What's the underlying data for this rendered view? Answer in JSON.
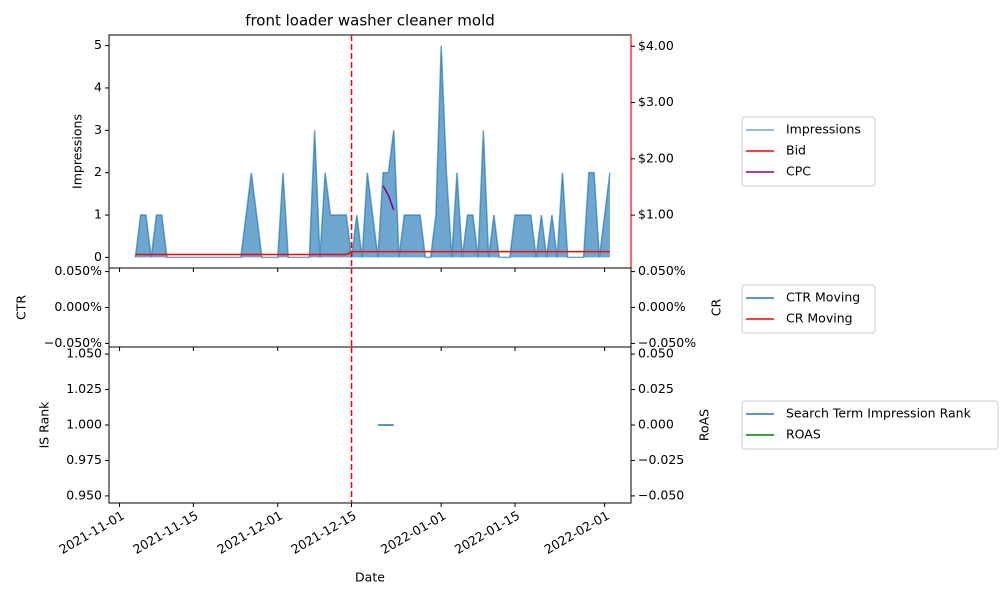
{
  "chart_data": [
    {
      "type": "line",
      "title": "front loader washer cleaner mold",
      "x": [
        "2021-11-04",
        "2021-11-05",
        "2021-11-06",
        "2021-11-07",
        "2021-11-08",
        "2021-11-09",
        "2021-11-10",
        "2021-11-11",
        "2021-11-12",
        "2021-11-13",
        "2021-11-14",
        "2021-11-15",
        "2021-11-16",
        "2021-11-17",
        "2021-11-18",
        "2021-11-19",
        "2021-11-20",
        "2021-11-21",
        "2021-11-22",
        "2021-11-23",
        "2021-11-24",
        "2021-11-25",
        "2021-11-26",
        "2021-11-27",
        "2021-11-28",
        "2021-11-29",
        "2021-11-30",
        "2021-12-01",
        "2021-12-02",
        "2021-12-03",
        "2021-12-04",
        "2021-12-05",
        "2021-12-06",
        "2021-12-07",
        "2021-12-08",
        "2021-12-09",
        "2021-12-10",
        "2021-12-11",
        "2021-12-12",
        "2021-12-13",
        "2021-12-14",
        "2021-12-15",
        "2021-12-16",
        "2021-12-17",
        "2021-12-18",
        "2021-12-19",
        "2021-12-20",
        "2021-12-21",
        "2021-12-22",
        "2021-12-23",
        "2021-12-24",
        "2021-12-25",
        "2021-12-26",
        "2021-12-27",
        "2021-12-28",
        "2021-12-29",
        "2021-12-30",
        "2021-12-31",
        "2022-01-01",
        "2022-01-02",
        "2022-01-03",
        "2022-01-04",
        "2022-01-05",
        "2022-01-06",
        "2022-01-07",
        "2022-01-08",
        "2022-01-09",
        "2022-01-10",
        "2022-01-11",
        "2022-01-12",
        "2022-01-13",
        "2022-01-14",
        "2022-01-15",
        "2022-01-16",
        "2022-01-17",
        "2022-01-18",
        "2022-01-19",
        "2022-01-20",
        "2022-01-21",
        "2022-01-22",
        "2022-01-23",
        "2022-01-24",
        "2022-01-25",
        "2022-01-26",
        "2022-01-27",
        "2022-01-28",
        "2022-01-29",
        "2022-01-30",
        "2022-01-31",
        "2022-02-01",
        "2022-02-02"
      ],
      "xlim": [
        "2021-10-30",
        "2022-02-06"
      ],
      "vline": "2021-12-15",
      "ylabel": "Impressions",
      "ylim": [
        -0.25,
        5.25
      ],
      "yticks": [
        0,
        1,
        2,
        3,
        4,
        5
      ],
      "ytick_color": "blue",
      "y2lim": [
        0.06,
        4.2
      ],
      "y2ticks": [
        {
          "value": 1,
          "label": "$1.00"
        },
        {
          "value": 2,
          "label": "$2.00"
        },
        {
          "value": 3,
          "label": "$3.00"
        },
        {
          "value": 4,
          "label": "$4.00"
        }
      ],
      "y2tick_color": "black",
      "y2_spine_color": "red",
      "legend": "right",
      "series": [
        {
          "name": "Impressions",
          "color": "#1f77b4",
          "fill": true,
          "values": [
            0,
            1,
            1,
            0,
            1,
            1,
            0,
            0,
            0,
            0,
            0,
            0,
            0,
            0,
            0,
            0,
            0,
            0,
            0,
            0,
            0,
            1,
            2,
            1,
            0,
            0,
            0,
            0,
            2,
            0,
            0,
            0,
            0,
            0,
            3,
            0,
            2,
            1,
            1,
            1,
            1,
            0,
            1,
            0,
            2,
            1,
            0,
            2,
            2,
            3,
            0,
            1,
            1,
            1,
            1,
            0,
            0,
            1,
            5,
            2,
            0,
            2,
            0,
            1,
            1,
            0,
            3,
            0,
            1,
            0,
            0,
            0,
            1,
            1,
            1,
            1,
            0,
            1,
            0,
            1,
            0,
            2,
            0,
            0,
            0,
            0,
            2,
            2,
            0,
            1,
            2
          ]
        },
        {
          "name": "Bid",
          "color": "red",
          "axis": "y2",
          "x": [
            "2021-11-04",
            "2021-12-14",
            "2021-12-15",
            "2022-02-02"
          ],
          "values": [
            0.3,
            0.3,
            0.35,
            0.35
          ]
        },
        {
          "name": "CPC",
          "color": "purple",
          "axis": "y2",
          "x": [
            "2021-12-21",
            "2021-12-22",
            "2021-12-23"
          ],
          "values": [
            1.52,
            1.35,
            1.09
          ]
        }
      ]
    },
    {
      "type": "line",
      "xlim": [
        "2021-10-30",
        "2022-02-06"
      ],
      "vline": "2021-12-15",
      "ylabel": "CTR",
      "ylim": [
        -0.055,
        0.055
      ],
      "yticks": [
        {
          "value": 0.05,
          "label": "0.050%"
        },
        {
          "value": 0,
          "label": "0.000%"
        },
        {
          "value": -0.05,
          "label": "−0.050%"
        }
      ],
      "ytick_color": "blue",
      "y2label": "CR",
      "y2lim": [
        -0.055,
        0.055
      ],
      "y2ticks": [
        {
          "value": 0.05,
          "label": "0.050%"
        },
        {
          "value": 0,
          "label": "0.000%"
        },
        {
          "value": -0.05,
          "label": "−0.050%"
        }
      ],
      "y2tick_color": "red",
      "legend": "right",
      "series": [
        {
          "name": "CTR Moving",
          "color": "#1f77b4",
          "values": []
        },
        {
          "name": "CR Moving",
          "color": "red",
          "axis": "y2",
          "values": []
        }
      ]
    },
    {
      "type": "line",
      "xlim": [
        "2021-10-30",
        "2022-02-06"
      ],
      "vline": "2021-12-15",
      "xlabel": "Date",
      "xticks": [
        "2021-11-01",
        "2021-11-15",
        "2021-12-01",
        "2021-12-15",
        "2022-01-01",
        "2022-01-15",
        "2022-02-01"
      ],
      "ylabel": "IS Rank",
      "ylim": [
        0.945,
        1.055
      ],
      "yticks": [
        {
          "value": 0.95,
          "label": "0.950"
        },
        {
          "value": 0.975,
          "label": "0.975"
        },
        {
          "value": 1,
          "label": "1.000"
        },
        {
          "value": 1.025,
          "label": "1.025"
        },
        {
          "value": 1.05,
          "label": "1.050"
        }
      ],
      "ytick_color": "blue",
      "y2label": "RoAS",
      "y2lim": [
        -0.055,
        0.055
      ],
      "y2ticks": [
        {
          "value": 0.05,
          "label": "0.050"
        },
        {
          "value": 0.025,
          "label": "0.025"
        },
        {
          "value": 0,
          "label": "0.000"
        },
        {
          "value": -0.025,
          "label": "−0.025"
        },
        {
          "value": -0.05,
          "label": "−0.050"
        }
      ],
      "y2tick_color": "green",
      "legend": "right",
      "series": [
        {
          "name": "Search Term Impression Rank",
          "color": "#1f77b4",
          "x": [
            "2021-12-20",
            "2021-12-21",
            "2021-12-22",
            "2021-12-23"
          ],
          "values": [
            1,
            1,
            1,
            1
          ]
        },
        {
          "name": "ROAS",
          "color": "green",
          "axis": "y2",
          "values": []
        }
      ]
    }
  ]
}
